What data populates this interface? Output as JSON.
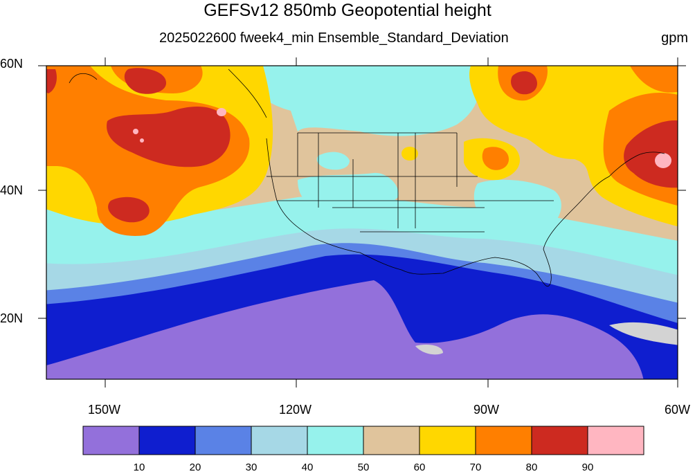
{
  "title": "GEFSv12 850mb Geopotential height",
  "subtitle": "2025022600 fweek4_min Ensemble_Standard_Deviation",
  "units": "gpm",
  "lat_labels": [
    "60N",
    "40N",
    "20N"
  ],
  "lon_labels": [
    "150W",
    "120W",
    "90W",
    "60W"
  ],
  "colorbar": {
    "colors": [
      "#9370db",
      "#0f1ecf",
      "#5a82e6",
      "#a6d8e6",
      "#96f2ec",
      "#e0c49c",
      "#ffd700",
      "#ff7f00",
      "#cd2a20",
      "#ffb6c1"
    ],
    "labels": [
      "10",
      "20",
      "30",
      "40",
      "50",
      "60",
      "70",
      "80",
      "90"
    ]
  },
  "map_colors": {
    "c0": "#9370db",
    "c1": "#0f1ecf",
    "c2": "#5a82e6",
    "c3": "#a6d8e6",
    "c4": "#96f2ec",
    "c5": "#e0c49c",
    "c6": "#ffd700",
    "c7": "#ff7f00",
    "c8": "#cd2a20",
    "c9": "#ffb6c1"
  }
}
